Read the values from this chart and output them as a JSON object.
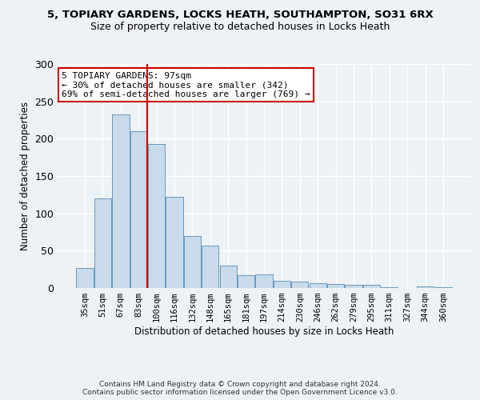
{
  "title_line1": "5, TOPIARY GARDENS, LOCKS HEATH, SOUTHAMPTON, SO31 6RX",
  "title_line2": "Size of property relative to detached houses in Locks Heath",
  "xlabel": "Distribution of detached houses by size in Locks Heath",
  "ylabel": "Number of detached properties",
  "bar_color": "#c9daea",
  "bar_edge_color": "#6899bb",
  "categories": [
    "35sqm",
    "51sqm",
    "67sqm",
    "83sqm",
    "100sqm",
    "116sqm",
    "132sqm",
    "148sqm",
    "165sqm",
    "181sqm",
    "197sqm",
    "214sqm",
    "230sqm",
    "246sqm",
    "262sqm",
    "279sqm",
    "295sqm",
    "311sqm",
    "327sqm",
    "344sqm",
    "360sqm"
  ],
  "values": [
    27,
    120,
    232,
    210,
    193,
    122,
    70,
    57,
    30,
    17,
    18,
    10,
    9,
    6,
    5,
    4,
    4,
    1,
    0,
    2,
    1
  ],
  "vline_index": 4,
  "annotation_text": "5 TOPIARY GARDENS: 97sqm\n← 30% of detached houses are smaller (342)\n69% of semi-detached houses are larger (769) →",
  "vline_color": "#cc0000",
  "annotation_box_facecolor": "#ffffff",
  "annotation_box_edgecolor": "#cc0000",
  "ylim": [
    0,
    300
  ],
  "yticks": [
    0,
    50,
    100,
    150,
    200,
    250,
    300
  ],
  "background_color": "#edf2f7",
  "grid_color": "#ffffff",
  "footnote": "Contains HM Land Registry data © Crown copyright and database right 2024.\nContains public sector information licensed under the Open Government Licence v3.0."
}
